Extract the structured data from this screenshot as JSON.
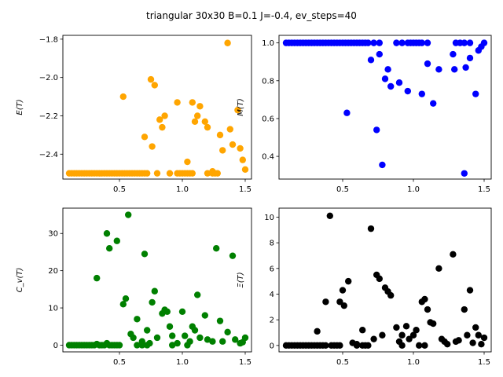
{
  "figure": {
    "suptitle": "triangular 30x30  B=0.1 J=-0.4, ev_steps=40"
  },
  "chart_data": [
    {
      "type": "scatter",
      "ylabel": "E(T)",
      "color": "#ffa500",
      "xlim": [
        0.05,
        1.55
      ],
      "ylim": [
        -2.53,
        -1.78
      ],
      "xticks": [
        0.5,
        1.0,
        1.5
      ],
      "xtick_labels": [
        "0.5",
        "1.0",
        "1.5"
      ],
      "yticks": [
        -2.4,
        -2.2,
        -2.0,
        -1.8
      ],
      "ytick_labels": [
        "−2.4",
        "−2.2",
        "−2.0",
        "−1.8"
      ],
      "points": [
        [
          0.1,
          -2.5
        ],
        [
          0.12,
          -2.5
        ],
        [
          0.14,
          -2.5
        ],
        [
          0.16,
          -2.5
        ],
        [
          0.18,
          -2.5
        ],
        [
          0.2,
          -2.5
        ],
        [
          0.22,
          -2.5
        ],
        [
          0.24,
          -2.5
        ],
        [
          0.26,
          -2.5
        ],
        [
          0.28,
          -2.5
        ],
        [
          0.3,
          -2.5
        ],
        [
          0.32,
          -2.5
        ],
        [
          0.34,
          -2.5
        ],
        [
          0.36,
          -2.5
        ],
        [
          0.38,
          -2.5
        ],
        [
          0.4,
          -2.5
        ],
        [
          0.42,
          -2.5
        ],
        [
          0.44,
          -2.5
        ],
        [
          0.46,
          -2.5
        ],
        [
          0.48,
          -2.5
        ],
        [
          0.5,
          -2.5
        ],
        [
          0.52,
          -2.5
        ],
        [
          0.54,
          -2.5
        ],
        [
          0.56,
          -2.5
        ],
        [
          0.58,
          -2.5
        ],
        [
          0.6,
          -2.5
        ],
        [
          0.62,
          -2.5
        ],
        [
          0.64,
          -2.5
        ],
        [
          0.66,
          -2.5
        ],
        [
          0.68,
          -2.5
        ],
        [
          0.7,
          -2.5
        ],
        [
          0.72,
          -2.5
        ],
        [
          0.8,
          -2.5
        ],
        [
          0.9,
          -2.5
        ],
        [
          0.96,
          -2.5
        ],
        [
          0.98,
          -2.5
        ],
        [
          1.0,
          -2.5
        ],
        [
          1.02,
          -2.5
        ],
        [
          1.04,
          -2.5
        ],
        [
          1.06,
          -2.5
        ],
        [
          1.08,
          -2.5
        ],
        [
          1.2,
          -2.5
        ],
        [
          1.24,
          -2.5
        ],
        [
          1.26,
          -2.5
        ],
        [
          1.28,
          -2.5
        ],
        [
          0.53,
          -2.1
        ],
        [
          0.7,
          -2.31
        ],
        [
          0.75,
          -2.01
        ],
        [
          0.78,
          -2.04
        ],
        [
          0.76,
          -2.36
        ],
        [
          0.82,
          -2.22
        ],
        [
          0.84,
          -2.26
        ],
        [
          0.86,
          -2.2
        ],
        [
          0.96,
          -2.13
        ],
        [
          1.04,
          -2.44
        ],
        [
          1.08,
          -2.13
        ],
        [
          1.1,
          -2.23
        ],
        [
          1.12,
          -2.2
        ],
        [
          1.14,
          -2.15
        ],
        [
          1.18,
          -2.23
        ],
        [
          1.2,
          -2.26
        ],
        [
          1.24,
          -2.49
        ],
        [
          1.3,
          -2.3
        ],
        [
          1.32,
          -2.38
        ],
        [
          1.36,
          -1.82
        ],
        [
          1.38,
          -2.27
        ],
        [
          1.4,
          -2.35
        ],
        [
          1.44,
          -2.17
        ],
        [
          1.46,
          -2.37
        ],
        [
          1.48,
          -2.43
        ],
        [
          1.5,
          -2.48
        ]
      ]
    },
    {
      "type": "scatter",
      "ylabel": "M(T)",
      "color": "#0000ff",
      "xlim": [
        0.05,
        1.55
      ],
      "ylim": [
        0.28,
        1.04
      ],
      "xticks": [
        0.5,
        1.0,
        1.5
      ],
      "xtick_labels": [
        "0.5",
        "1.0",
        "1.5"
      ],
      "yticks": [
        0.4,
        0.6,
        0.8,
        1.0
      ],
      "ytick_labels": [
        "0.4",
        "0.6",
        "0.8",
        "1.0"
      ],
      "points": [
        [
          0.1,
          1.0
        ],
        [
          0.12,
          1.0
        ],
        [
          0.14,
          1.0
        ],
        [
          0.16,
          1.0
        ],
        [
          0.18,
          1.0
        ],
        [
          0.2,
          1.0
        ],
        [
          0.22,
          1.0
        ],
        [
          0.24,
          1.0
        ],
        [
          0.26,
          1.0
        ],
        [
          0.28,
          1.0
        ],
        [
          0.3,
          1.0
        ],
        [
          0.32,
          1.0
        ],
        [
          0.34,
          1.0
        ],
        [
          0.36,
          1.0
        ],
        [
          0.38,
          1.0
        ],
        [
          0.4,
          1.0
        ],
        [
          0.42,
          1.0
        ],
        [
          0.44,
          1.0
        ],
        [
          0.46,
          1.0
        ],
        [
          0.48,
          1.0
        ],
        [
          0.5,
          1.0
        ],
        [
          0.52,
          1.0
        ],
        [
          0.54,
          1.0
        ],
        [
          0.56,
          1.0
        ],
        [
          0.58,
          1.0
        ],
        [
          0.6,
          1.0
        ],
        [
          0.62,
          1.0
        ],
        [
          0.64,
          1.0
        ],
        [
          0.66,
          1.0
        ],
        [
          0.68,
          1.0
        ],
        [
          0.72,
          1.0
        ],
        [
          0.76,
          1.0
        ],
        [
          0.88,
          1.0
        ],
        [
          0.92,
          1.0
        ],
        [
          0.96,
          1.0
        ],
        [
          0.98,
          1.0
        ],
        [
          1.0,
          1.0
        ],
        [
          1.02,
          1.0
        ],
        [
          1.04,
          1.0
        ],
        [
          1.06,
          1.0
        ],
        [
          1.1,
          1.0
        ],
        [
          1.3,
          1.0
        ],
        [
          1.33,
          1.0
        ],
        [
          1.36,
          1.0
        ],
        [
          1.4,
          1.0
        ],
        [
          0.53,
          0.63
        ],
        [
          0.7,
          0.91
        ],
        [
          0.74,
          0.54
        ],
        [
          0.76,
          0.94
        ],
        [
          0.78,
          0.355
        ],
        [
          0.8,
          0.81
        ],
        [
          0.82,
          0.86
        ],
        [
          0.84,
          0.77
        ],
        [
          0.9,
          0.79
        ],
        [
          0.96,
          0.745
        ],
        [
          1.06,
          0.73
        ],
        [
          1.1,
          0.89
        ],
        [
          1.14,
          0.68
        ],
        [
          1.18,
          0.86
        ],
        [
          1.28,
          0.94
        ],
        [
          1.29,
          0.86
        ],
        [
          1.36,
          0.31
        ],
        [
          1.37,
          0.87
        ],
        [
          1.4,
          0.92
        ],
        [
          1.44,
          0.73
        ],
        [
          1.46,
          0.96
        ],
        [
          1.48,
          0.98
        ],
        [
          1.5,
          1.0
        ]
      ]
    },
    {
      "type": "scatter",
      "ylabel": "C_v(T)",
      "color": "#008000",
      "xlim": [
        0.05,
        1.55
      ],
      "ylim": [
        -1.8,
        36.8
      ],
      "xticks": [
        0.5,
        1.0,
        1.5
      ],
      "xtick_labels": [
        "0.5",
        "1.0",
        "1.5"
      ],
      "yticks": [
        0,
        10,
        20,
        30
      ],
      "ytick_labels": [
        "0",
        "10",
        "20",
        "30"
      ],
      "points": [
        [
          0.1,
          0
        ],
        [
          0.12,
          0
        ],
        [
          0.14,
          0
        ],
        [
          0.16,
          0
        ],
        [
          0.18,
          0
        ],
        [
          0.2,
          0
        ],
        [
          0.22,
          0
        ],
        [
          0.24,
          0
        ],
        [
          0.26,
          0
        ],
        [
          0.28,
          0
        ],
        [
          0.3,
          0
        ],
        [
          0.32,
          0.3
        ],
        [
          0.34,
          0
        ],
        [
          0.36,
          0
        ],
        [
          0.38,
          0
        ],
        [
          0.4,
          0.5
        ],
        [
          0.42,
          0
        ],
        [
          0.44,
          0
        ],
        [
          0.46,
          0
        ],
        [
          0.48,
          0
        ],
        [
          0.5,
          0
        ],
        [
          0.64,
          0
        ],
        [
          0.68,
          0
        ],
        [
          0.72,
          0
        ],
        [
          0.74,
          0.5
        ],
        [
          0.92,
          0
        ],
        [
          1.04,
          0
        ],
        [
          0.32,
          18
        ],
        [
          0.4,
          30
        ],
        [
          0.42,
          26
        ],
        [
          0.48,
          28
        ],
        [
          0.53,
          11
        ],
        [
          0.55,
          12.5
        ],
        [
          0.57,
          35
        ],
        [
          0.59,
          3
        ],
        [
          0.61,
          2
        ],
        [
          0.64,
          7
        ],
        [
          0.68,
          1
        ],
        [
          0.7,
          24.5
        ],
        [
          0.72,
          4
        ],
        [
          0.76,
          11.5
        ],
        [
          0.78,
          14.5
        ],
        [
          0.8,
          2
        ],
        [
          0.84,
          8.5
        ],
        [
          0.86,
          9.5
        ],
        [
          0.88,
          9
        ],
        [
          0.9,
          5
        ],
        [
          0.92,
          2.5
        ],
        [
          0.96,
          0.5
        ],
        [
          1.0,
          9
        ],
        [
          1.02,
          2.5
        ],
        [
          1.06,
          1
        ],
        [
          1.08,
          5
        ],
        [
          1.1,
          4
        ],
        [
          1.12,
          13.5
        ],
        [
          1.14,
          2
        ],
        [
          1.18,
          8
        ],
        [
          1.2,
          1.5
        ],
        [
          1.24,
          1
        ],
        [
          1.27,
          26
        ],
        [
          1.3,
          6.5
        ],
        [
          1.32,
          1
        ],
        [
          1.36,
          3.5
        ],
        [
          1.4,
          24
        ],
        [
          1.42,
          1.5
        ],
        [
          1.46,
          0.5
        ],
        [
          1.48,
          0.8
        ],
        [
          1.5,
          2
        ]
      ]
    },
    {
      "type": "scatter",
      "ylabel": "Ξ(T)",
      "color": "#000000",
      "xlim": [
        0.05,
        1.55
      ],
      "ylim": [
        -0.5,
        10.7
      ],
      "xticks": [
        0.5,
        1.0,
        1.5
      ],
      "xtick_labels": [
        "0.5",
        "1.0",
        "1.5"
      ],
      "yticks": [
        0,
        2,
        4,
        6,
        8,
        10
      ],
      "ytick_labels": [
        "0",
        "2",
        "4",
        "6",
        "8",
        "10"
      ],
      "points": [
        [
          0.1,
          0
        ],
        [
          0.12,
          0
        ],
        [
          0.14,
          0
        ],
        [
          0.16,
          0
        ],
        [
          0.18,
          0
        ],
        [
          0.2,
          0
        ],
        [
          0.22,
          0
        ],
        [
          0.24,
          0
        ],
        [
          0.26,
          0
        ],
        [
          0.28,
          0
        ],
        [
          0.3,
          0
        ],
        [
          0.32,
          0
        ],
        [
          0.34,
          0
        ],
        [
          0.36,
          0
        ],
        [
          0.38,
          0
        ],
        [
          0.42,
          0
        ],
        [
          0.44,
          0
        ],
        [
          0.46,
          0
        ],
        [
          0.48,
          0
        ],
        [
          0.6,
          0
        ],
        [
          0.64,
          0
        ],
        [
          0.66,
          0
        ],
        [
          0.68,
          0
        ],
        [
          0.92,
          0
        ],
        [
          1.04,
          0
        ],
        [
          1.08,
          0
        ],
        [
          0.32,
          1.1
        ],
        [
          0.38,
          3.4
        ],
        [
          0.41,
          10.1
        ],
        [
          0.48,
          3.4
        ],
        [
          0.5,
          4.3
        ],
        [
          0.51,
          3.1
        ],
        [
          0.54,
          5.0
        ],
        [
          0.57,
          0.2
        ],
        [
          0.6,
          0.1
        ],
        [
          0.64,
          1.2
        ],
        [
          0.7,
          9.1
        ],
        [
          0.72,
          0.5
        ],
        [
          0.74,
          5.5
        ],
        [
          0.76,
          5.2
        ],
        [
          0.78,
          0.8
        ],
        [
          0.8,
          4.5
        ],
        [
          0.82,
          4.2
        ],
        [
          0.84,
          3.9
        ],
        [
          0.88,
          1.4
        ],
        [
          0.9,
          0.3
        ],
        [
          0.92,
          0.8
        ],
        [
          0.95,
          1.5
        ],
        [
          0.97,
          0.5
        ],
        [
          1.0,
          0.8
        ],
        [
          1.02,
          1.2
        ],
        [
          1.06,
          3.4
        ],
        [
          1.08,
          3.6
        ],
        [
          1.1,
          2.8
        ],
        [
          1.12,
          1.8
        ],
        [
          1.14,
          1.7
        ],
        [
          1.18,
          6.0
        ],
        [
          1.2,
          0.5
        ],
        [
          1.22,
          0.3
        ],
        [
          1.24,
          0.1
        ],
        [
          1.28,
          7.1
        ],
        [
          1.3,
          0.3
        ],
        [
          1.32,
          0.4
        ],
        [
          1.36,
          2.8
        ],
        [
          1.38,
          0.8
        ],
        [
          1.4,
          4.3
        ],
        [
          1.42,
          0.2
        ],
        [
          1.44,
          1.4
        ],
        [
          1.46,
          0.8
        ],
        [
          1.48,
          0.1
        ],
        [
          1.5,
          0.6
        ]
      ]
    }
  ]
}
